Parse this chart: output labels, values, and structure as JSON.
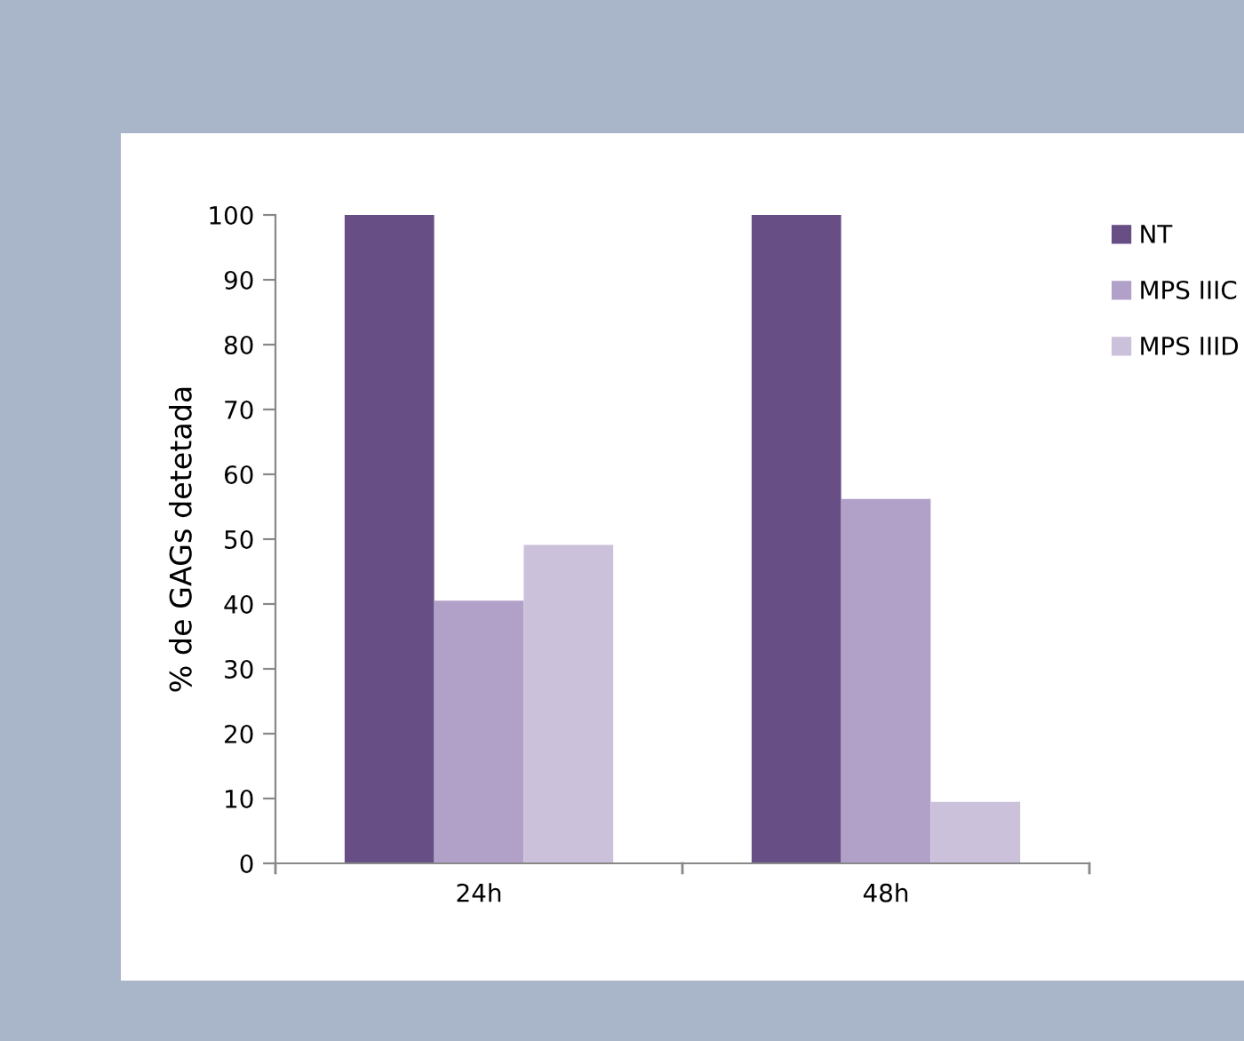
{
  "chart_data": {
    "type": "bar",
    "ylabel": "% de GAGs detetada",
    "categories": [
      "24h",
      "48h"
    ],
    "series": [
      {
        "name": "NT",
        "color": "#674f86",
        "values": [
          100,
          100
        ]
      },
      {
        "name": "MPS IIIC",
        "color": "#b1a1c8",
        "values": [
          40.5,
          56.2
        ]
      },
      {
        "name": "MPS IIID",
        "color": "#cbc1db",
        "values": [
          49.1,
          9.5
        ]
      }
    ],
    "ylim": [
      0,
      100
    ],
    "yticks": [
      0,
      10,
      20,
      30,
      40,
      50,
      60,
      70,
      80,
      90,
      100
    ],
    "grid": false,
    "legend": "top right"
  }
}
